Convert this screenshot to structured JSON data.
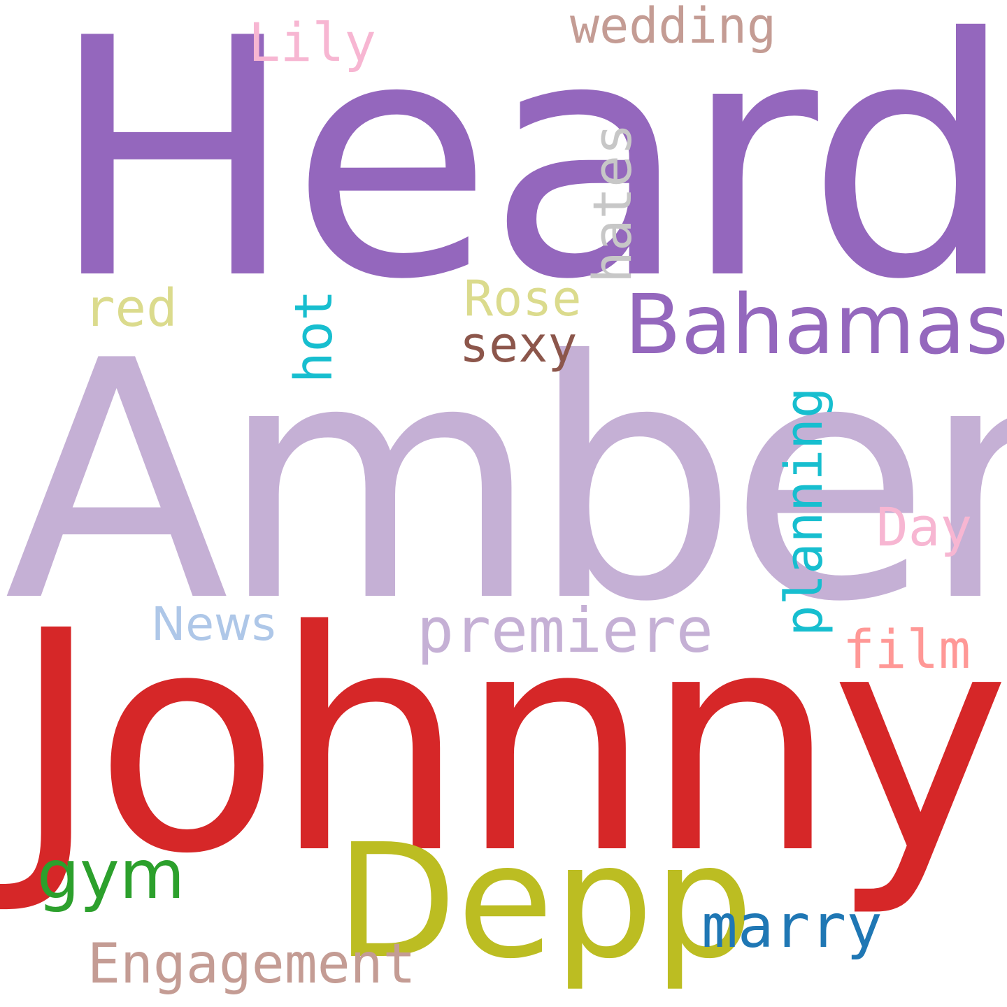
{
  "words": {
    "heard": {
      "text": "Heard",
      "color": "#9467bd"
    },
    "amber": {
      "text": "Amber",
      "color": "#c5b0d5"
    },
    "johnny": {
      "text": "Johnny",
      "color": "#d62728"
    },
    "depp": {
      "text": "Depp",
      "color": "#bcbd22"
    },
    "bahamas": {
      "text": "Bahamas",
      "color": "#9467bd"
    },
    "premiere": {
      "text": "premiere",
      "color": "#c5b0d5"
    },
    "marry": {
      "text": "marry",
      "color": "#1f77b4"
    },
    "gym": {
      "text": "gym",
      "color": "#2ca02c"
    },
    "engagement": {
      "text": "Engagement",
      "color": "#c49c94"
    },
    "wedding": {
      "text": "wedding",
      "color": "#c49c94"
    },
    "lily": {
      "text": "Lily",
      "color": "#f7b6d2"
    },
    "rose": {
      "text": "Rose",
      "color": "#dbdb8d"
    },
    "sexy": {
      "text": "sexy",
      "color": "#8c564b"
    },
    "red": {
      "text": "red",
      "color": "#dbdb8d"
    },
    "news": {
      "text": "News",
      "color": "#aec7e8"
    },
    "day": {
      "text": "Day",
      "color": "#f7b6d2"
    },
    "film": {
      "text": "film",
      "color": "#ff9896"
    },
    "hates": {
      "text": "hates",
      "color": "#c7c7c7"
    },
    "hot": {
      "text": "hot",
      "color": "#17becf"
    },
    "planning": {
      "text": "planning",
      "color": "#17becf"
    }
  }
}
